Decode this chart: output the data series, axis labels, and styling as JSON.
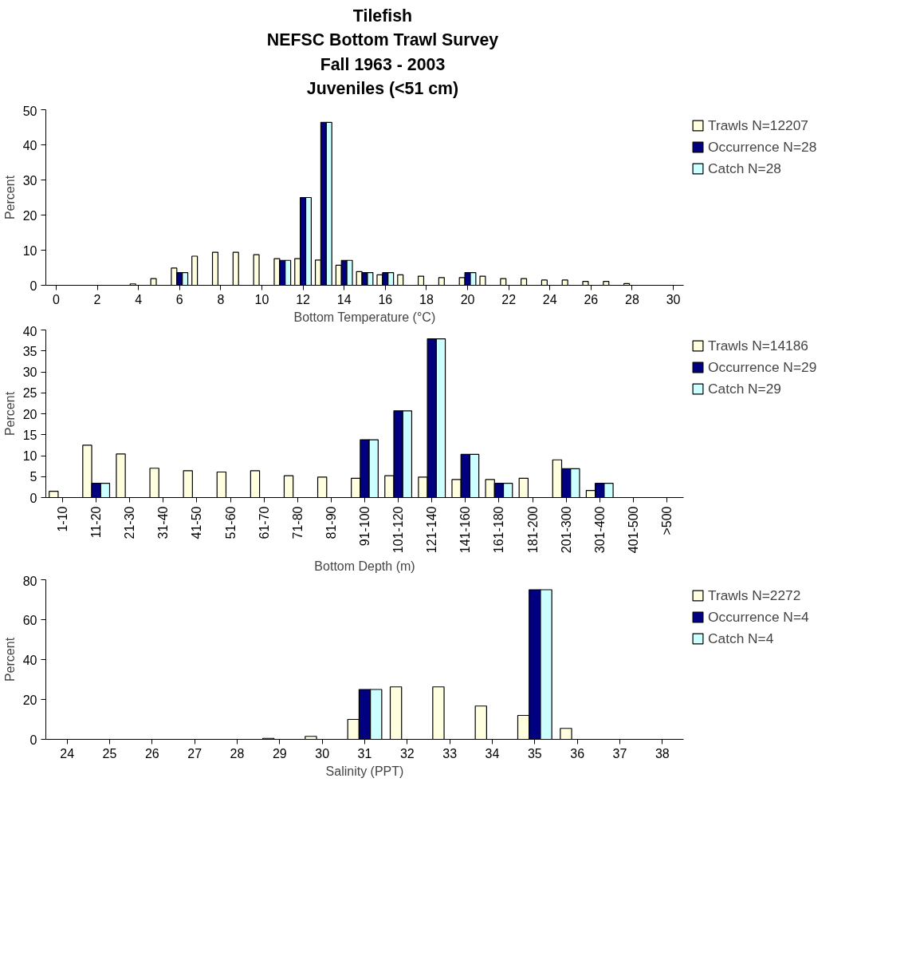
{
  "chart_data": [
    {
      "type": "bar",
      "title": "Tilefish\nNEFSC Bottom Trawl Survey\nFall 1963 - 2003\nJuveniles (<51 cm)",
      "xlabel": "Bottom Temperature (°C)",
      "ylabel": "Percent",
      "x": [
        4,
        5,
        6,
        7,
        8,
        9,
        10,
        11,
        12,
        13,
        14,
        15,
        16,
        17,
        18,
        19,
        20,
        21,
        22,
        23,
        24,
        25,
        26,
        27,
        28
      ],
      "xlim": [
        -0.5,
        30.5
      ],
      "xticks": [
        0,
        2,
        4,
        6,
        8,
        10,
        12,
        14,
        16,
        18,
        20,
        22,
        24,
        26,
        28,
        30
      ],
      "ylim": [
        0,
        50
      ],
      "yticks": [
        0,
        10,
        20,
        30,
        40,
        50
      ],
      "grid": false,
      "legend": "top right",
      "series": [
        {
          "name": "Trawls N=12207",
          "color": "#ffffe0",
          "values": [
            0.4,
            1.9,
            4.9,
            8.3,
            9.4,
            9.4,
            8.7,
            7.6,
            7.6,
            7.2,
            5.7,
            3.9,
            3.0,
            3.0,
            2.6,
            2.2,
            2.2,
            2.6,
            1.9,
            1.9,
            1.5,
            1.5,
            1.1,
            1.1,
            0.5
          ]
        },
        {
          "name": "Occurrence N=28",
          "color": "#000080",
          "values": [
            null,
            null,
            3.6,
            null,
            null,
            null,
            null,
            7.1,
            25.0,
            46.4,
            7.1,
            3.6,
            3.6,
            null,
            null,
            null,
            3.6,
            null,
            null,
            null,
            null,
            null,
            null,
            null,
            null
          ]
        },
        {
          "name": "Catch N=28",
          "color": "#ccffff",
          "values": [
            null,
            null,
            3.6,
            null,
            null,
            null,
            null,
            7.1,
            25.0,
            46.4,
            7.1,
            3.6,
            3.6,
            null,
            null,
            null,
            3.6,
            null,
            null,
            null,
            null,
            null,
            null,
            null,
            null
          ]
        }
      ]
    },
    {
      "type": "bar",
      "xlabel": "Bottom Depth (m)",
      "ylabel": "Percent",
      "categories": [
        "1-10",
        "11-20",
        "21-30",
        "31-40",
        "41-50",
        "51-60",
        "61-70",
        "71-80",
        "81-90",
        "91-100",
        "101-120",
        "121-140",
        "141-160",
        "161-180",
        "181-200",
        "201-300",
        "301-400",
        "401-500",
        ">500"
      ],
      "ylim": [
        0,
        40
      ],
      "yticks": [
        0,
        5,
        10,
        15,
        20,
        25,
        30,
        35,
        40
      ],
      "grid": false,
      "legend": "top right",
      "series": [
        {
          "name": "Trawls N=14186",
          "color": "#ffffe0",
          "values": [
            1.5,
            12.5,
            10.4,
            7.0,
            6.4,
            6.1,
            6.4,
            5.2,
            4.9,
            4.6,
            5.2,
            4.9,
            4.3,
            4.3,
            4.6,
            9.0,
            1.7,
            null,
            null
          ]
        },
        {
          "name": "Occurrence N=29",
          "color": "#000080",
          "values": [
            null,
            3.4,
            null,
            null,
            null,
            null,
            null,
            null,
            null,
            13.8,
            20.7,
            37.9,
            10.3,
            3.4,
            null,
            6.9,
            3.4,
            null,
            null
          ]
        },
        {
          "name": "Catch N=29",
          "color": "#ccffff",
          "values": [
            null,
            3.4,
            null,
            null,
            null,
            null,
            null,
            null,
            null,
            13.8,
            20.7,
            37.9,
            10.3,
            3.4,
            null,
            6.9,
            3.4,
            null,
            null
          ]
        }
      ]
    },
    {
      "type": "bar",
      "xlabel": "Salinity (PPT)",
      "ylabel": "Percent",
      "x": [
        29,
        30,
        31,
        32,
        33,
        34,
        35,
        36
      ],
      "xlim": [
        23.5,
        38.5
      ],
      "xticks": [
        24,
        25,
        26,
        27,
        28,
        29,
        30,
        31,
        32,
        33,
        34,
        35,
        36,
        37,
        38
      ],
      "ylim": [
        0,
        80
      ],
      "yticks": [
        0,
        20,
        40,
        60,
        80
      ],
      "grid": false,
      "legend": "top right",
      "series": [
        {
          "name": "Trawls N=2272",
          "color": "#ffffe0",
          "values": [
            0.5,
            1.5,
            10,
            26.3,
            26.3,
            16.7,
            12,
            5.5
          ]
        },
        {
          "name": "Occurrence N=4",
          "color": "#000080",
          "values": [
            null,
            null,
            25,
            null,
            null,
            null,
            75,
            null
          ]
        },
        {
          "name": "Catch N=4",
          "color": "#ccffff",
          "values": [
            null,
            null,
            25,
            null,
            null,
            null,
            75,
            null
          ]
        }
      ]
    }
  ]
}
